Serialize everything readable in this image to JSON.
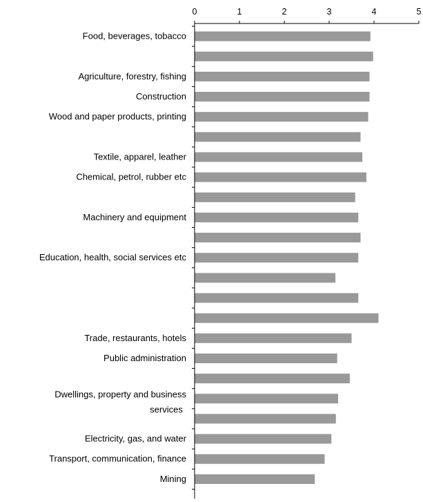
{
  "chart_data": {
    "type": "bar",
    "orientation": "horizontal",
    "title": "",
    "xlabel": "",
    "ylabel": "",
    "xlim": [
      0,
      5
    ],
    "x_ticks": [
      "0",
      "1",
      "2",
      "3",
      "4",
      "5"
    ],
    "x_axis_position": "top",
    "grid": false,
    "legend": "none",
    "bar_color": "#999999",
    "categories": [
      "Food, beverages, tobacco",
      "",
      "Agriculture, forestry, fishing",
      "Construction",
      "Wood and paper products, printing",
      "",
      "Textile, apparel, leather",
      "Chemical, petrol, rubber etc",
      "",
      "Machinery and equipment",
      "",
      "Education, health, social services etc",
      "",
      "",
      "",
      "Trade, restaurants, hotels",
      "Public administration",
      "",
      "Dwellings, property and business services",
      "",
      "Electricity, gas, and water",
      "Transport, communication, finance",
      "Mining"
    ],
    "values": [
      3.92,
      3.98,
      3.9,
      3.9,
      3.87,
      3.7,
      3.74,
      3.83,
      3.58,
      3.65,
      3.7,
      3.65,
      3.14,
      3.65,
      4.1,
      3.5,
      3.18,
      3.46,
      3.2,
      3.15,
      3.05,
      2.9,
      2.68
    ]
  }
}
